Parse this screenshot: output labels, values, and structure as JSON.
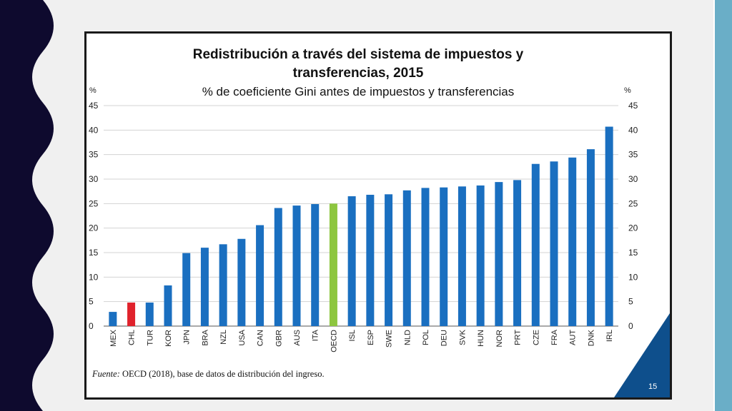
{
  "chart_data": {
    "type": "bar",
    "title_lines": [
      "Redistribución a través del sistema de impuestos y",
      "transferencias, 2015"
    ],
    "subtitle": "% de coeficiente Gini antes de impuestos y transferencias",
    "unit_left": "%",
    "unit_right": "%",
    "ylim": [
      0,
      45
    ],
    "yticks": [
      0,
      5,
      10,
      15,
      20,
      25,
      30,
      35,
      40,
      45
    ],
    "grid": true,
    "categories": [
      "MEX",
      "CHL",
      "TUR",
      "KOR",
      "JPN",
      "BRA",
      "NZL",
      "USA",
      "CAN",
      "GBR",
      "AUS",
      "ITA",
      "OECD",
      "ISL",
      "ESP",
      "SWE",
      "NLD",
      "POL",
      "DEU",
      "SVK",
      "HUN",
      "NOR",
      "PRT",
      "CZE",
      "FRA",
      "AUT",
      "DNK",
      "IRL"
    ],
    "values": [
      2.9,
      4.8,
      4.8,
      8.3,
      14.9,
      16.0,
      16.7,
      17.8,
      20.6,
      24.1,
      24.6,
      24.9,
      25.0,
      26.5,
      26.8,
      26.9,
      27.7,
      28.2,
      28.3,
      28.5,
      28.7,
      29.4,
      29.8,
      33.1,
      33.6,
      34.4,
      36.1,
      40.7
    ],
    "colors": {
      "default": "#1a6fc0",
      "CHL": "#e0222c",
      "OECD": "#8dc63f"
    }
  },
  "source": {
    "label": "Fuente:",
    "text": " OECD (2018), base de datos de distribución del ingreso."
  },
  "slide": {
    "page_number": "15",
    "accent_color": "#0e4f8c",
    "background_wave_color": "#0e0a2e"
  }
}
